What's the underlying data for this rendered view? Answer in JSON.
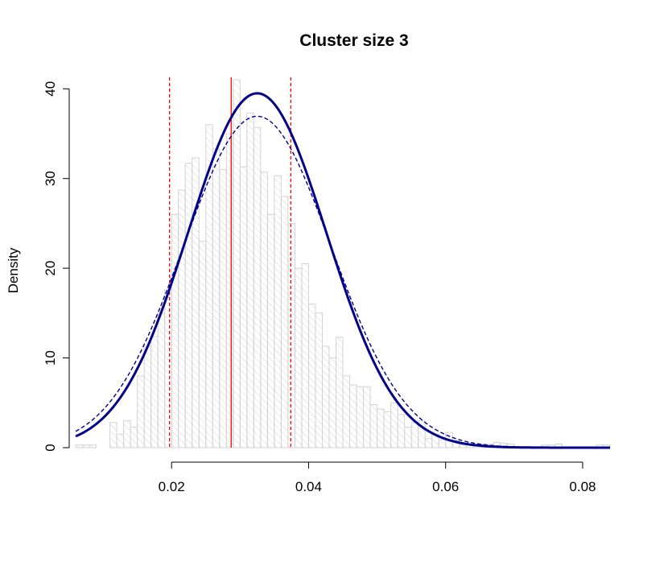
{
  "chart_data": {
    "type": "histogram",
    "title": "Cluster size 3",
    "xlabel": "",
    "ylabel": "Density",
    "xlim": [
      0.006,
      0.084
    ],
    "ylim": [
      0,
      42
    ],
    "x_ticks": [
      0.02,
      0.04,
      0.06,
      0.08
    ],
    "x_tick_labels": [
      "0.02",
      "0.04",
      "0.06",
      "0.08"
    ],
    "y_ticks": [
      0,
      10,
      20,
      30,
      40
    ],
    "y_tick_labels": [
      "0",
      "10",
      "20",
      "30",
      "40"
    ],
    "grid": false,
    "legend": "none",
    "histogram": {
      "bin_width": 0.001,
      "bin_start": 0.006,
      "densities": [
        0.3,
        0.3,
        0.3,
        0,
        0,
        2.8,
        1.5,
        3.0,
        2.3,
        8.0,
        11.3,
        12.4,
        15.0,
        17.6,
        26.0,
        28.7,
        31.7,
        32.3,
        23.0,
        36.0,
        33.3,
        31.0,
        35.0,
        41.0,
        31.3,
        37.3,
        35.7,
        30.7,
        26.0,
        30.3,
        28.0,
        25.0,
        20.0,
        20.5,
        16.0,
        15.0,
        11.3,
        10.0,
        12.3,
        8.0,
        7.0,
        6.8,
        6.8,
        4.8,
        4.3,
        4.0,
        5.0,
        3.7,
        2.3,
        2.8,
        3.0,
        1.0,
        1.5,
        0.9,
        1.7,
        0.8,
        0.3,
        0.4,
        0.4,
        0.4,
        0.4,
        0.6,
        0.5,
        0.4,
        0.1,
        0.1,
        0.1,
        0.1,
        0.3,
        0.3,
        0.4,
        0.1,
        0.1,
        0.1,
        0.1,
        0.1,
        0.3,
        0.3
      ],
      "fill": "#ffffff",
      "stroke": "#d3d3d3"
    },
    "curves": [
      {
        "style": "solid",
        "color": "#00008b",
        "distribution": "normal",
        "mean": 0.0325,
        "sd": 0.0101
      },
      {
        "style": "dashed",
        "color": "#00008b",
        "distribution": "normal",
        "mean": 0.0325,
        "sd": 0.0108
      }
    ],
    "vlines": [
      {
        "x": 0.0287,
        "style": "solid",
        "color": "#ff0000"
      },
      {
        "x": 0.0197,
        "style": "dashed",
        "color": "#ff0000"
      },
      {
        "x": 0.0374,
        "style": "dashed",
        "color": "#ff0000"
      }
    ]
  }
}
